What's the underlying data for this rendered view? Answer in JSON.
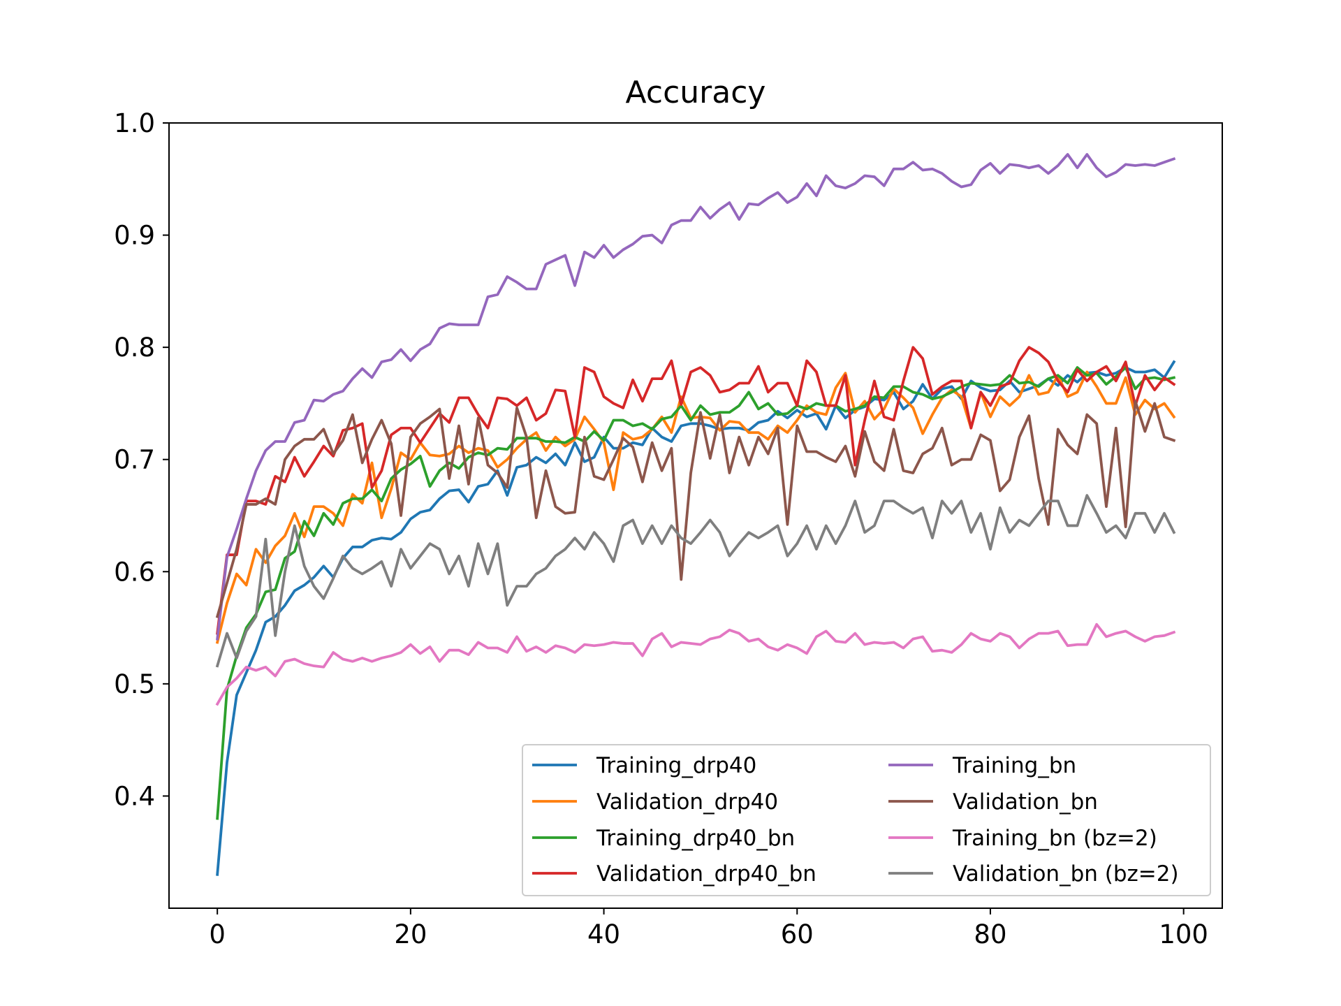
{
  "chart_data": {
    "type": "line",
    "title": "Accuracy",
    "xlabel": "",
    "ylabel": "",
    "xlim": [
      -5,
      104
    ],
    "ylim": [
      0.3,
      1.0
    ],
    "xticks": [
      0,
      20,
      40,
      60,
      80,
      100
    ],
    "yticks": [
      0.4,
      0.5,
      0.6,
      0.7,
      0.8,
      0.9,
      1.0
    ],
    "xtick_labels": [
      "0",
      "20",
      "40",
      "60",
      "80",
      "100"
    ],
    "ytick_labels": [
      "0.4",
      "0.5",
      "0.6",
      "0.7",
      "0.8",
      "0.9",
      "1.0"
    ],
    "grid": false,
    "legend": {
      "placement": "lower right",
      "columns": 2
    },
    "series": [
      {
        "name": "Training_drp40",
        "color": "#1f77b4",
        "x_start": 0,
        "x_step": 1,
        "values": [
          0.33,
          0.43,
          0.49,
          0.51,
          0.53,
          0.555,
          0.56,
          0.57,
          0.583,
          0.588,
          0.595,
          0.605,
          0.595,
          0.612,
          0.622,
          0.622,
          0.628,
          0.63,
          0.629,
          0.635,
          0.647,
          0.653,
          0.655,
          0.665,
          0.672,
          0.673,
          0.662,
          0.676,
          0.678,
          0.69,
          0.668,
          0.693,
          0.695,
          0.702,
          0.697,
          0.705,
          0.695,
          0.715,
          0.698,
          0.702,
          0.72,
          0.71,
          0.71,
          0.715,
          0.713,
          0.728,
          0.72,
          0.716,
          0.73,
          0.732,
          0.732,
          0.73,
          0.727,
          0.728,
          0.728,
          0.726,
          0.733,
          0.735,
          0.743,
          0.737,
          0.744,
          0.738,
          0.741,
          0.727,
          0.748,
          0.737,
          0.744,
          0.747,
          0.754,
          0.753,
          0.76,
          0.745,
          0.752,
          0.767,
          0.754,
          0.763,
          0.765,
          0.754,
          0.77,
          0.764,
          0.761,
          0.762,
          0.77,
          0.76,
          0.763,
          0.766,
          0.772,
          0.766,
          0.775,
          0.769,
          0.777,
          0.778,
          0.775,
          0.777,
          0.782,
          0.778,
          0.778,
          0.78,
          0.773,
          0.787
        ]
      },
      {
        "name": "Validation_drp40",
        "color": "#ff7f0e",
        "x_start": 0,
        "x_step": 1,
        "values": [
          0.537,
          0.572,
          0.598,
          0.588,
          0.62,
          0.608,
          0.623,
          0.632,
          0.652,
          0.631,
          0.658,
          0.658,
          0.652,
          0.641,
          0.669,
          0.661,
          0.697,
          0.648,
          0.674,
          0.706,
          0.7,
          0.715,
          0.704,
          0.703,
          0.705,
          0.712,
          0.706,
          0.71,
          0.708,
          0.693,
          0.7,
          0.71,
          0.718,
          0.724,
          0.708,
          0.72,
          0.712,
          0.718,
          0.738,
          0.727,
          0.715,
          0.673,
          0.724,
          0.718,
          0.72,
          0.727,
          0.738,
          0.724,
          0.756,
          0.737,
          0.738,
          0.737,
          0.726,
          0.734,
          0.733,
          0.724,
          0.724,
          0.718,
          0.73,
          0.724,
          0.735,
          0.748,
          0.742,
          0.74,
          0.764,
          0.777,
          0.742,
          0.752,
          0.736,
          0.745,
          0.763,
          0.755,
          0.746,
          0.723,
          0.74,
          0.755,
          0.762,
          0.756,
          0.728,
          0.76,
          0.738,
          0.756,
          0.748,
          0.756,
          0.775,
          0.758,
          0.76,
          0.775,
          0.756,
          0.76,
          0.778,
          0.765,
          0.75,
          0.75,
          0.773,
          0.74,
          0.753,
          0.745,
          0.75,
          0.738
        ]
      },
      {
        "name": "Training_drp40_bn",
        "color": "#2ca02c",
        "x_start": 0,
        "x_step": 1,
        "values": [
          0.38,
          0.495,
          0.525,
          0.55,
          0.562,
          0.582,
          0.584,
          0.612,
          0.618,
          0.645,
          0.632,
          0.652,
          0.642,
          0.661,
          0.665,
          0.665,
          0.673,
          0.663,
          0.683,
          0.691,
          0.696,
          0.703,
          0.676,
          0.69,
          0.697,
          0.692,
          0.702,
          0.706,
          0.704,
          0.71,
          0.709,
          0.719,
          0.719,
          0.719,
          0.716,
          0.716,
          0.715,
          0.72,
          0.716,
          0.725,
          0.717,
          0.735,
          0.735,
          0.73,
          0.732,
          0.727,
          0.736,
          0.738,
          0.748,
          0.735,
          0.748,
          0.74,
          0.742,
          0.742,
          0.748,
          0.76,
          0.745,
          0.75,
          0.74,
          0.741,
          0.748,
          0.745,
          0.75,
          0.748,
          0.748,
          0.743,
          0.745,
          0.748,
          0.756,
          0.755,
          0.765,
          0.765,
          0.76,
          0.758,
          0.754,
          0.756,
          0.76,
          0.765,
          0.768,
          0.767,
          0.766,
          0.767,
          0.775,
          0.768,
          0.769,
          0.765,
          0.772,
          0.775,
          0.768,
          0.782,
          0.775,
          0.777,
          0.767,
          0.774,
          0.782,
          0.763,
          0.772,
          0.773,
          0.771,
          0.773
        ]
      },
      {
        "name": "Validation_drp40_bn",
        "color": "#d62728",
        "x_start": 0,
        "x_step": 1,
        "values": [
          0.545,
          0.615,
          0.615,
          0.663,
          0.663,
          0.66,
          0.685,
          0.68,
          0.702,
          0.685,
          0.698,
          0.712,
          0.703,
          0.726,
          0.728,
          0.732,
          0.675,
          0.69,
          0.722,
          0.728,
          0.728,
          0.715,
          0.728,
          0.741,
          0.733,
          0.755,
          0.755,
          0.74,
          0.728,
          0.755,
          0.754,
          0.748,
          0.755,
          0.735,
          0.741,
          0.762,
          0.761,
          0.72,
          0.782,
          0.778,
          0.756,
          0.75,
          0.746,
          0.771,
          0.752,
          0.772,
          0.772,
          0.788,
          0.749,
          0.778,
          0.782,
          0.775,
          0.76,
          0.762,
          0.768,
          0.768,
          0.783,
          0.76,
          0.768,
          0.768,
          0.748,
          0.788,
          0.778,
          0.748,
          0.748,
          0.775,
          0.695,
          0.735,
          0.77,
          0.738,
          0.735,
          0.77,
          0.8,
          0.79,
          0.758,
          0.765,
          0.77,
          0.77,
          0.728,
          0.76,
          0.748,
          0.765,
          0.768,
          0.788,
          0.8,
          0.795,
          0.787,
          0.77,
          0.76,
          0.78,
          0.77,
          0.778,
          0.783,
          0.77,
          0.787,
          0.748,
          0.775,
          0.762,
          0.773,
          0.767
        ]
      },
      {
        "name": "Training_bn",
        "color": "#9467bd",
        "x_start": 0,
        "x_step": 1,
        "values": [
          0.54,
          0.613,
          0.638,
          0.665,
          0.69,
          0.708,
          0.716,
          0.716,
          0.733,
          0.735,
          0.753,
          0.752,
          0.758,
          0.761,
          0.772,
          0.781,
          0.773,
          0.787,
          0.789,
          0.798,
          0.788,
          0.798,
          0.803,
          0.817,
          0.821,
          0.82,
          0.82,
          0.82,
          0.845,
          0.847,
          0.863,
          0.858,
          0.852,
          0.852,
          0.874,
          0.878,
          0.882,
          0.855,
          0.885,
          0.88,
          0.891,
          0.88,
          0.887,
          0.892,
          0.899,
          0.9,
          0.893,
          0.909,
          0.913,
          0.913,
          0.925,
          0.915,
          0.923,
          0.929,
          0.914,
          0.928,
          0.927,
          0.933,
          0.938,
          0.929,
          0.934,
          0.946,
          0.935,
          0.953,
          0.944,
          0.942,
          0.946,
          0.953,
          0.952,
          0.944,
          0.959,
          0.959,
          0.965,
          0.958,
          0.959,
          0.955,
          0.948,
          0.943,
          0.945,
          0.958,
          0.964,
          0.955,
          0.963,
          0.962,
          0.96,
          0.962,
          0.955,
          0.962,
          0.972,
          0.96,
          0.972,
          0.96,
          0.952,
          0.956,
          0.963,
          0.962,
          0.963,
          0.962,
          0.965,
          0.968
        ]
      },
      {
        "name": "Validation_bn",
        "color": "#8c564b",
        "x_start": 0,
        "x_step": 1,
        "values": [
          0.56,
          0.59,
          0.62,
          0.66,
          0.66,
          0.665,
          0.66,
          0.7,
          0.712,
          0.718,
          0.718,
          0.727,
          0.705,
          0.717,
          0.74,
          0.697,
          0.718,
          0.735,
          0.714,
          0.65,
          0.72,
          0.732,
          0.738,
          0.745,
          0.683,
          0.73,
          0.678,
          0.737,
          0.695,
          0.688,
          0.675,
          0.746,
          0.72,
          0.648,
          0.69,
          0.658,
          0.652,
          0.653,
          0.72,
          0.685,
          0.682,
          0.7,
          0.719,
          0.711,
          0.68,
          0.715,
          0.69,
          0.71,
          0.593,
          0.688,
          0.742,
          0.701,
          0.74,
          0.688,
          0.72,
          0.695,
          0.72,
          0.705,
          0.728,
          0.642,
          0.73,
          0.707,
          0.707,
          0.702,
          0.698,
          0.712,
          0.685,
          0.725,
          0.698,
          0.69,
          0.727,
          0.69,
          0.688,
          0.705,
          0.71,
          0.728,
          0.695,
          0.7,
          0.7,
          0.722,
          0.717,
          0.672,
          0.682,
          0.72,
          0.739,
          0.683,
          0.642,
          0.727,
          0.713,
          0.705,
          0.74,
          0.732,
          0.658,
          0.728,
          0.64,
          0.752,
          0.725,
          0.75,
          0.72,
          0.717
        ]
      },
      {
        "name": "Training_bn (bz=2)",
        "color": "#e377c2",
        "x_start": 0,
        "x_step": 1,
        "values": [
          0.482,
          0.497,
          0.505,
          0.515,
          0.512,
          0.515,
          0.507,
          0.52,
          0.522,
          0.518,
          0.516,
          0.515,
          0.528,
          0.522,
          0.52,
          0.523,
          0.52,
          0.523,
          0.525,
          0.528,
          0.535,
          0.527,
          0.533,
          0.52,
          0.53,
          0.53,
          0.526,
          0.537,
          0.532,
          0.532,
          0.528,
          0.542,
          0.529,
          0.533,
          0.528,
          0.534,
          0.532,
          0.528,
          0.535,
          0.534,
          0.535,
          0.537,
          0.536,
          0.536,
          0.525,
          0.54,
          0.545,
          0.533,
          0.537,
          0.536,
          0.535,
          0.54,
          0.542,
          0.548,
          0.545,
          0.538,
          0.54,
          0.533,
          0.53,
          0.535,
          0.532,
          0.527,
          0.542,
          0.547,
          0.538,
          0.537,
          0.545,
          0.535,
          0.537,
          0.536,
          0.537,
          0.532,
          0.54,
          0.542,
          0.529,
          0.53,
          0.528,
          0.535,
          0.545,
          0.54,
          0.538,
          0.545,
          0.542,
          0.532,
          0.54,
          0.545,
          0.545,
          0.547,
          0.534,
          0.535,
          0.535,
          0.553,
          0.542,
          0.545,
          0.547,
          0.542,
          0.538,
          0.542,
          0.543,
          0.546
        ]
      },
      {
        "name": "Validation_bn (bz=2)",
        "color": "#7f7f7f",
        "x_start": 0,
        "x_step": 1,
        "values": [
          0.516,
          0.545,
          0.523,
          0.547,
          0.56,
          0.629,
          0.543,
          0.6,
          0.641,
          0.605,
          0.587,
          0.576,
          0.594,
          0.614,
          0.603,
          0.598,
          0.603,
          0.609,
          0.587,
          0.62,
          0.603,
          0.614,
          0.625,
          0.62,
          0.598,
          0.614,
          0.587,
          0.625,
          0.598,
          0.625,
          0.57,
          0.587,
          0.587,
          0.598,
          0.603,
          0.614,
          0.62,
          0.63,
          0.62,
          0.635,
          0.625,
          0.609,
          0.641,
          0.646,
          0.625,
          0.641,
          0.625,
          0.641,
          0.63,
          0.625,
          0.635,
          0.646,
          0.635,
          0.614,
          0.625,
          0.635,
          0.63,
          0.635,
          0.641,
          0.614,
          0.625,
          0.641,
          0.62,
          0.641,
          0.625,
          0.641,
          0.663,
          0.635,
          0.641,
          0.663,
          0.663,
          0.657,
          0.652,
          0.657,
          0.63,
          0.663,
          0.652,
          0.663,
          0.635,
          0.652,
          0.62,
          0.657,
          0.635,
          0.646,
          0.641,
          0.652,
          0.663,
          0.663,
          0.641,
          0.641,
          0.668,
          0.652,
          0.635,
          0.641,
          0.63,
          0.652,
          0.652,
          0.635,
          0.652,
          0.635
        ]
      }
    ]
  }
}
